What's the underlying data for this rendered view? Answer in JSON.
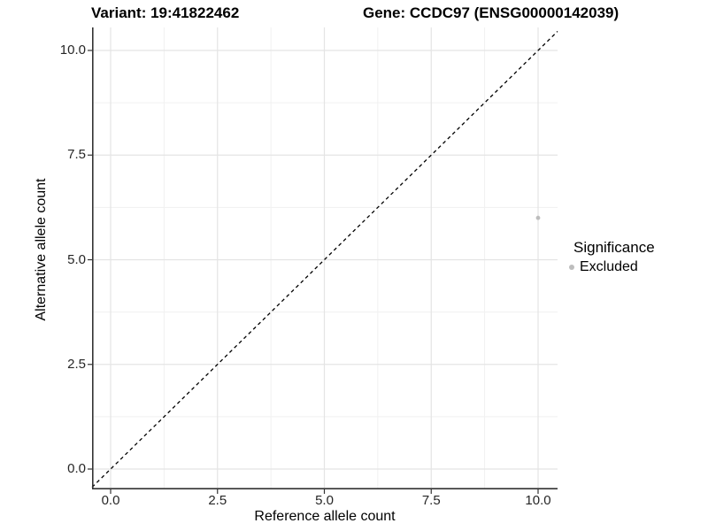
{
  "header": {
    "variant_title": "Variant: 19:41822462",
    "gene_title": "Gene: CCDC97 (ENSG00000142039)"
  },
  "axes": {
    "x": {
      "title": "Reference allele count",
      "ticks": [
        {
          "value": 0,
          "label": "0.0"
        },
        {
          "value": 2.5,
          "label": "2.5"
        },
        {
          "value": 5,
          "label": "5.0"
        },
        {
          "value": 7.5,
          "label": "7.5"
        },
        {
          "value": 10,
          "label": "10.0"
        }
      ]
    },
    "y": {
      "title": "Alternative allele count",
      "ticks": [
        {
          "value": 0,
          "label": "0.0"
        },
        {
          "value": 2.5,
          "label": "2.5"
        },
        {
          "value": 5,
          "label": "5.0"
        },
        {
          "value": 7.5,
          "label": "7.5"
        },
        {
          "value": 10,
          "label": "10.0"
        }
      ]
    }
  },
  "legend": {
    "title": "Significance",
    "items": [
      {
        "label": "Excluded",
        "color": "#bdbdbd"
      }
    ]
  },
  "chart_data": {
    "type": "scatter",
    "title": "Variant: 19:41822462",
    "subtitle": "Gene: CCDC97 (ENSG00000142039)",
    "xlabel": "Reference allele count",
    "ylabel": "Alternative allele count",
    "xlim": [
      -0.45,
      10.45
    ],
    "ylim": [
      -0.45,
      10.45
    ],
    "x_ticks": [
      0,
      2.5,
      5,
      7.5,
      10
    ],
    "y_ticks": [
      0,
      2.5,
      5,
      7.5,
      10
    ],
    "grid": "major+minor",
    "legend_position": "right",
    "series": [
      {
        "name": "Excluded",
        "color": "#bdbdbd",
        "marker": "circle",
        "points": [
          {
            "x": 10,
            "y": 6
          }
        ]
      }
    ],
    "reference_lines": [
      {
        "name": "identity",
        "equation": "y = x",
        "linestyle": "dashed",
        "color": "#000000"
      }
    ]
  },
  "style": {
    "background": "#ffffff",
    "grid_major_color": "#e4e4e4",
    "grid_minor_color": "#f1f1f1",
    "axis_line_color": "#333333",
    "tick_mark_color": "#333333",
    "tick_label_color": "#262626",
    "point_color": "#bdbdbd",
    "dashed_line_color": "#000000"
  }
}
